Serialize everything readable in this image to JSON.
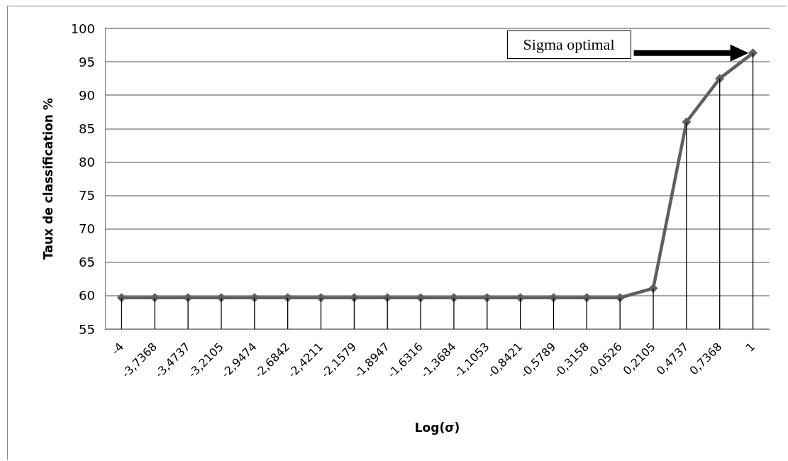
{
  "chart_data": {
    "type": "line",
    "xlabel": "Log(σ)",
    "ylabel": "Taux de classification %",
    "categories": [
      "-4",
      "-3,7368",
      "-3,4737",
      "-3,2105",
      "-2,9474",
      "-2,6842",
      "-2,4211",
      "-2,1579",
      "-1,8947",
      "-1,6316",
      "-1,3684",
      "-1,1053",
      "-0,8421",
      "-0,5789",
      "-0,3158",
      "-0,0526",
      "0,2105",
      "0,4737",
      "0,7368",
      "1"
    ],
    "series": [
      {
        "color": "#5f5f5f",
        "values": [
          59.7,
          59.7,
          59.7,
          59.7,
          59.7,
          59.7,
          59.7,
          59.7,
          59.7,
          59.7,
          59.7,
          59.7,
          59.7,
          59.7,
          59.7,
          59.7,
          61.1,
          86.0,
          92.5,
          96.3
        ]
      },
      {
        "type": "bar",
        "color": "#000000",
        "values": [
          59.7,
          59.7,
          59.7,
          59.7,
          59.7,
          59.7,
          59.7,
          59.7,
          59.7,
          59.7,
          59.7,
          59.7,
          59.7,
          59.7,
          59.7,
          59.7,
          61.1,
          86.0,
          92.5,
          96.3
        ]
      }
    ],
    "ylim": [
      55,
      100
    ],
    "yticks": [
      55,
      60,
      65,
      70,
      75,
      80,
      85,
      90,
      95,
      100
    ],
    "grid": "y",
    "marker": "diamond",
    "line_style": "solid",
    "annotations": [
      "Sigma optimal"
    ]
  }
}
